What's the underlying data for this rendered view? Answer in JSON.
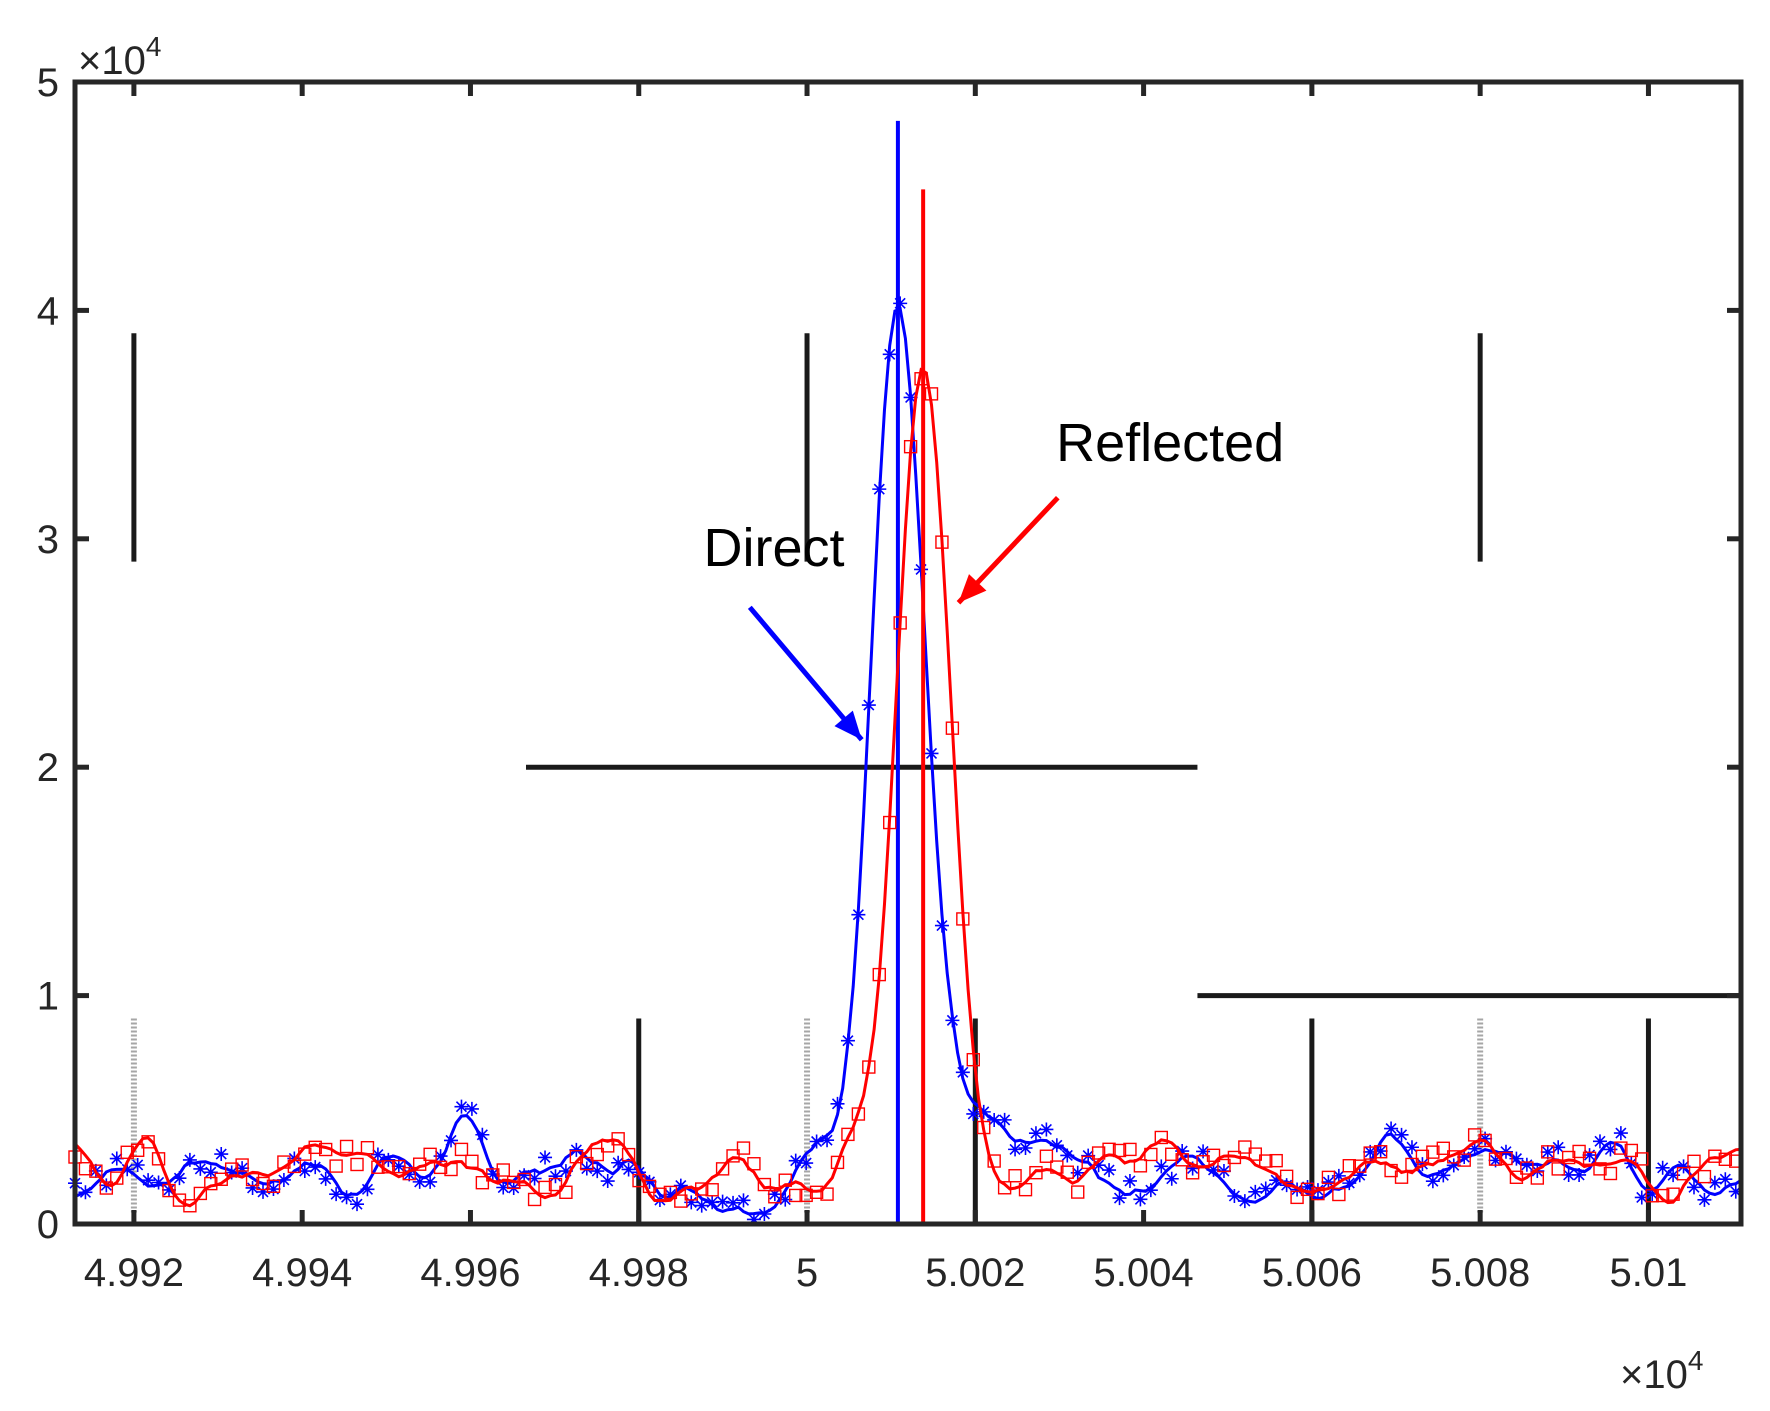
{
  "chart_data": {
    "type": "line",
    "title": "",
    "xlabel": "",
    "ylabel": "",
    "xlim": [
      4.9913,
      5.0111
    ],
    "ylim": [
      0,
      5
    ],
    "x_multiplier": "×10",
    "x_multiplier_exp": "4",
    "y_multiplier": "×10",
    "y_multiplier_exp": "4",
    "x_ticks": [
      4.992,
      4.994,
      4.996,
      4.998,
      5.0,
      5.002,
      5.004,
      5.006,
      5.008,
      5.01
    ],
    "x_tick_labels": [
      "4.992",
      "4.994",
      "4.996",
      "4.998",
      "5",
      "5.002",
      "5.004",
      "5.006",
      "5.008",
      "5.01"
    ],
    "y_ticks": [
      0,
      1,
      2,
      3,
      4,
      5
    ],
    "y_tick_labels": [
      "0",
      "1",
      "2",
      "3",
      "4",
      "5"
    ],
    "series": [
      {
        "name": "Direct",
        "color": "#0000ff",
        "marker": "asterisk",
        "peak_x": 5.00108,
        "peak_y": 4.02,
        "peak_line_top": 4.83,
        "peak_width": 0.00045,
        "noise_seed": 7,
        "noise_mean": 0.26,
        "noise_amp": 0.22
      },
      {
        "name": "Reflected",
        "color": "#ff0000",
        "marker": "square",
        "peak_x": 5.00138,
        "peak_y": 3.75,
        "peak_line_top": 4.53,
        "peak_width": 0.00045,
        "noise_seed": 19,
        "noise_mean": 0.24,
        "noise_amp": 0.16
      }
    ],
    "reference_segments": [
      {
        "x1": 4.992,
        "x2": 4.992,
        "y1": 3.9,
        "y2": 2.9
      },
      {
        "x1": 5.0,
        "x2": 5.0,
        "y1": 3.9,
        "y2": 2.9
      },
      {
        "x1": 5.008,
        "x2": 5.008,
        "y1": 3.9,
        "y2": 2.9
      },
      {
        "x1": 4.99666,
        "x2": 5.00464,
        "y1": 2.0,
        "y2": 2.0
      },
      {
        "x1": 5.00464,
        "x2": 5.0111,
        "y1": 1.0,
        "y2": 1.0
      },
      {
        "x1": 4.998,
        "x2": 4.998,
        "y1": 0.9,
        "y2": 0
      },
      {
        "x1": 5.002,
        "x2": 5.002,
        "y1": 0.9,
        "y2": 0
      },
      {
        "x1": 5.006,
        "x2": 5.006,
        "y1": 0.9,
        "y2": 0
      },
      {
        "x1": 5.01,
        "x2": 5.01,
        "y1": 0.9,
        "y2": 0
      }
    ],
    "grey_markers_x": [
      4.992,
      5.0,
      5.008
    ],
    "annotations": [
      {
        "text": "Direct",
        "color": "#0000ff",
        "text_x": 4.99877,
        "text_y": 2.88,
        "arrow_from": [
          4.99932,
          2.7
        ],
        "arrow_to": [
          5.00065,
          2.12
        ]
      },
      {
        "text": "Reflected",
        "color": "#ff0000",
        "text_x": 5.00296,
        "text_y": 3.34,
        "arrow_from": [
          5.00298,
          3.18
        ],
        "arrow_to": [
          5.0018,
          2.72
        ]
      }
    ]
  }
}
